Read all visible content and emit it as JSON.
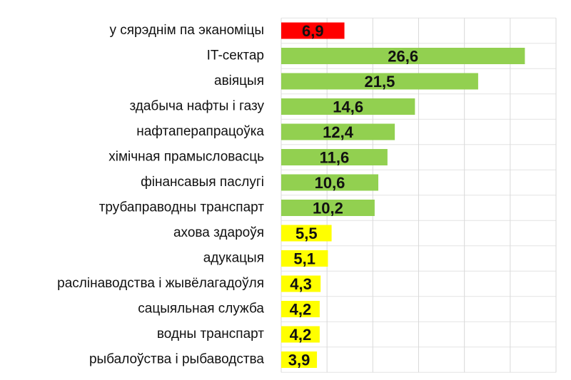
{
  "chart_data": {
    "type": "barh",
    "categories": [
      "у сярэднім па эканоміцы",
      "IT-сектар",
      "авіяцыя",
      "здабыча нафты і газу",
      "нафтаперапрацоўка",
      "хімічная прамысловасць",
      "фінансавыя паслугі",
      "трубаправодны транспарт",
      "ахова здароўя",
      "адукацыя",
      "раслінаводства і жывёлагадоўля",
      "сацыяльная служба",
      "водны транспарт",
      "рыбалоўства і рыбаводства"
    ],
    "values": [
      6.9,
      26.6,
      21.5,
      14.6,
      12.4,
      11.6,
      10.6,
      10.2,
      5.5,
      5.1,
      4.3,
      4.2,
      4.2,
      3.9
    ],
    "value_labels": [
      "6,9",
      "26,6",
      "21,5",
      "14,6",
      "12,4",
      "11,6",
      "10,6",
      "10,2",
      "5,5",
      "5,1",
      "4,3",
      "4,2",
      "4,2",
      "3,9"
    ],
    "colors": [
      "#ff0000",
      "#92d050",
      "#92d050",
      "#92d050",
      "#92d050",
      "#92d050",
      "#92d050",
      "#92d050",
      "#ffff00",
      "#ffff00",
      "#ffff00",
      "#ffff00",
      "#ffff00",
      "#ffff00"
    ],
    "xlim": [
      0,
      30
    ],
    "xticks": [
      0,
      5,
      10,
      15,
      20,
      25,
      30
    ],
    "grid": true
  }
}
